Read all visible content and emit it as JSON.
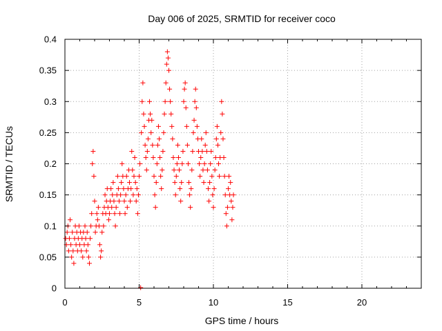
{
  "chart_data": {
    "type": "scatter",
    "title": "Day 006 of 2025, SRMTID for receiver coco",
    "xlabel": "GPS time / hours",
    "ylabel": "SRMTID / TECUs",
    "xlim": [
      0,
      24
    ],
    "ylim": [
      0,
      0.4
    ],
    "xticks": [
      0,
      5,
      10,
      15,
      20
    ],
    "xtick_labels": [
      "0",
      "5",
      "10",
      "15",
      "20"
    ],
    "yticks": [
      0,
      0.05,
      0.1,
      0.15,
      0.2,
      0.25,
      0.3,
      0.35,
      0.4
    ],
    "ytick_labels": [
      "0",
      "0.05",
      "0.1",
      "0.15",
      "0.2",
      "0.25",
      "0.3",
      "0.35",
      "0.4"
    ],
    "grid": true,
    "marker": "+",
    "color": "#ff0000",
    "series": [
      {
        "name": "SRMTID",
        "points": [
          [
            0.05,
            0.08
          ],
          [
            0.1,
            0.07
          ],
          [
            0.15,
            0.09
          ],
          [
            0.2,
            0.1
          ],
          [
            0.25,
            0.06
          ],
          [
            0.3,
            0.08
          ],
          [
            0.35,
            0.11
          ],
          [
            0.4,
            0.07
          ],
          [
            0.45,
            0.05
          ],
          [
            0.5,
            0.09
          ],
          [
            0.55,
            0.06
          ],
          [
            0.6,
            0.04
          ],
          [
            0.65,
            0.08
          ],
          [
            0.7,
            0.1
          ],
          [
            0.75,
            0.07
          ],
          [
            0.8,
            0.09
          ],
          [
            0.85,
            0.06
          ],
          [
            0.9,
            0.08
          ],
          [
            0.95,
            0.1
          ],
          [
            1.0,
            0.07
          ],
          [
            1.05,
            0.09
          ],
          [
            1.1,
            0.06
          ],
          [
            1.15,
            0.08
          ],
          [
            1.2,
            0.05
          ],
          [
            1.25,
            0.09
          ],
          [
            1.3,
            0.07
          ],
          [
            1.35,
            0.1
          ],
          [
            1.4,
            0.08
          ],
          [
            1.45,
            0.06
          ],
          [
            1.5,
            0.09
          ],
          [
            1.55,
            0.07
          ],
          [
            1.6,
            0.05
          ],
          [
            1.65,
            0.04
          ],
          [
            1.7,
            0.08
          ],
          [
            1.75,
            0.1
          ],
          [
            1.8,
            0.12
          ],
          [
            1.85,
            0.2
          ],
          [
            1.9,
            0.22
          ],
          [
            1.95,
            0.18
          ],
          [
            2.0,
            0.14
          ],
          [
            2.05,
            0.09
          ],
          [
            2.1,
            0.1
          ],
          [
            2.15,
            0.12
          ],
          [
            2.2,
            0.11
          ],
          [
            2.25,
            0.13
          ],
          [
            2.3,
            0.1
          ],
          [
            2.35,
            0.07
          ],
          [
            2.4,
            0.05
          ],
          [
            2.45,
            0.06
          ],
          [
            2.5,
            0.09
          ],
          [
            2.55,
            0.12
          ],
          [
            2.6,
            0.1
          ],
          [
            2.65,
            0.13
          ],
          [
            2.7,
            0.15
          ],
          [
            2.75,
            0.12
          ],
          [
            2.8,
            0.14
          ],
          [
            2.85,
            0.16
          ],
          [
            2.9,
            0.13
          ],
          [
            2.95,
            0.11
          ],
          [
            3.0,
            0.12
          ],
          [
            3.05,
            0.14
          ],
          [
            3.1,
            0.16
          ],
          [
            3.15,
            0.13
          ],
          [
            3.2,
            0.15
          ],
          [
            3.25,
            0.17
          ],
          [
            3.3,
            0.14
          ],
          [
            3.35,
            0.12
          ],
          [
            3.4,
            0.1
          ],
          [
            3.45,
            0.13
          ],
          [
            3.5,
            0.15
          ],
          [
            3.55,
            0.18
          ],
          [
            3.6,
            0.16
          ],
          [
            3.65,
            0.14
          ],
          [
            3.7,
            0.12
          ],
          [
            3.75,
            0.15
          ],
          [
            3.8,
            0.17
          ],
          [
            3.85,
            0.2
          ],
          [
            3.9,
            0.18
          ],
          [
            3.95,
            0.16
          ],
          [
            4.0,
            0.14
          ],
          [
            4.05,
            0.12
          ],
          [
            4.1,
            0.15
          ],
          [
            4.15,
            0.18
          ],
          [
            4.2,
            0.13
          ],
          [
            4.25,
            0.16
          ],
          [
            4.3,
            0.19
          ],
          [
            4.35,
            0.17
          ],
          [
            4.4,
            0.14
          ],
          [
            4.45,
            0.16
          ],
          [
            4.5,
            0.22
          ],
          [
            4.55,
            0.19
          ],
          [
            4.6,
            0.15
          ],
          [
            4.65,
            0.18
          ],
          [
            4.7,
            0.21
          ],
          [
            4.75,
            0.17
          ],
          [
            4.8,
            0.14
          ],
          [
            4.85,
            0.16
          ],
          [
            4.9,
            0.12
          ],
          [
            4.95,
            0.15
          ],
          [
            5.0,
            0.18
          ],
          [
            5.05,
            0.2
          ],
          [
            5.1,
            0.001
          ],
          [
            5.15,
            0.25
          ],
          [
            5.2,
            0.3
          ],
          [
            5.25,
            0.33
          ],
          [
            5.3,
            0.28
          ],
          [
            5.35,
            0.26
          ],
          [
            5.4,
            0.23
          ],
          [
            5.45,
            0.21
          ],
          [
            5.5,
            0.19
          ],
          [
            5.55,
            0.22
          ],
          [
            5.6,
            0.24
          ],
          [
            5.65,
            0.27
          ],
          [
            5.7,
            0.3
          ],
          [
            5.75,
            0.28
          ],
          [
            5.8,
            0.25
          ],
          [
            5.85,
            0.27
          ],
          [
            5.9,
            0.23
          ],
          [
            5.95,
            0.21
          ],
          [
            6.0,
            0.18
          ],
          [
            6.05,
            0.15
          ],
          [
            6.1,
            0.13
          ],
          [
            6.15,
            0.17
          ],
          [
            6.2,
            0.2
          ],
          [
            6.25,
            0.23
          ],
          [
            6.3,
            0.26
          ],
          [
            6.35,
            0.24
          ],
          [
            6.4,
            0.21
          ],
          [
            6.45,
            0.18
          ],
          [
            6.5,
            0.16
          ],
          [
            6.55,
            0.19
          ],
          [
            6.6,
            0.22
          ],
          [
            6.65,
            0.25
          ],
          [
            6.7,
            0.28
          ],
          [
            6.75,
            0.3
          ],
          [
            6.8,
            0.33
          ],
          [
            6.85,
            0.36
          ],
          [
            6.9,
            0.38
          ],
          [
            6.95,
            0.37
          ],
          [
            7.0,
            0.35
          ],
          [
            7.05,
            0.32
          ],
          [
            7.1,
            0.3
          ],
          [
            7.15,
            0.28
          ],
          [
            7.2,
            0.26
          ],
          [
            7.25,
            0.24
          ],
          [
            7.3,
            0.21
          ],
          [
            7.35,
            0.19
          ],
          [
            7.4,
            0.17
          ],
          [
            7.45,
            0.15
          ],
          [
            7.5,
            0.18
          ],
          [
            7.55,
            0.2
          ],
          [
            7.6,
            0.23
          ],
          [
            7.65,
            0.21
          ],
          [
            7.7,
            0.19
          ],
          [
            7.75,
            0.16
          ],
          [
            7.8,
            0.14
          ],
          [
            7.85,
            0.17
          ],
          [
            7.9,
            0.2
          ],
          [
            7.95,
            0.22
          ],
          [
            8.0,
            0.3
          ],
          [
            8.05,
            0.32
          ],
          [
            8.1,
            0.33
          ],
          [
            8.15,
            0.29
          ],
          [
            8.2,
            0.26
          ],
          [
            8.25,
            0.23
          ],
          [
            8.3,
            0.2
          ],
          [
            8.35,
            0.17
          ],
          [
            8.4,
            0.15
          ],
          [
            8.45,
            0.13
          ],
          [
            8.5,
            0.16
          ],
          [
            8.55,
            0.19
          ],
          [
            8.6,
            0.22
          ],
          [
            8.65,
            0.25
          ],
          [
            8.7,
            0.27
          ],
          [
            8.75,
            0.3
          ],
          [
            8.8,
            0.32
          ],
          [
            8.85,
            0.29
          ],
          [
            8.9,
            0.26
          ],
          [
            8.95,
            0.24
          ],
          [
            9.0,
            0.22
          ],
          [
            9.05,
            0.2
          ],
          [
            9.1,
            0.18
          ],
          [
            9.15,
            0.21
          ],
          [
            9.2,
            0.24
          ],
          [
            9.25,
            0.22
          ],
          [
            9.3,
            0.19
          ],
          [
            9.35,
            0.17
          ],
          [
            9.4,
            0.2
          ],
          [
            9.45,
            0.23
          ],
          [
            9.5,
            0.25
          ],
          [
            9.55,
            0.22
          ],
          [
            9.6,
            0.19
          ],
          [
            9.65,
            0.16
          ],
          [
            9.7,
            0.14
          ],
          [
            9.75,
            0.17
          ],
          [
            9.8,
            0.2
          ],
          [
            9.85,
            0.22
          ],
          [
            9.9,
            0.18
          ],
          [
            9.95,
            0.15
          ],
          [
            10.0,
            0.13
          ],
          [
            10.05,
            0.16
          ],
          [
            10.1,
            0.19
          ],
          [
            10.15,
            0.21
          ],
          [
            10.2,
            0.24
          ],
          [
            10.25,
            0.26
          ],
          [
            10.3,
            0.23
          ],
          [
            10.35,
            0.2
          ],
          [
            10.4,
            0.18
          ],
          [
            10.45,
            0.21
          ],
          [
            10.5,
            0.25
          ],
          [
            10.55,
            0.3
          ],
          [
            10.6,
            0.28
          ],
          [
            10.65,
            0.24
          ],
          [
            10.7,
            0.21
          ],
          [
            10.75,
            0.18
          ],
          [
            10.8,
            0.15
          ],
          [
            10.85,
            0.12
          ],
          [
            10.9,
            0.1
          ],
          [
            10.95,
            0.13
          ],
          [
            11.0,
            0.16
          ],
          [
            11.05,
            0.18
          ],
          [
            11.1,
            0.15
          ],
          [
            11.15,
            0.17
          ],
          [
            11.2,
            0.14
          ],
          [
            11.25,
            0.11
          ],
          [
            11.3,
            0.13
          ],
          [
            11.35,
            0.15
          ]
        ]
      }
    ]
  }
}
